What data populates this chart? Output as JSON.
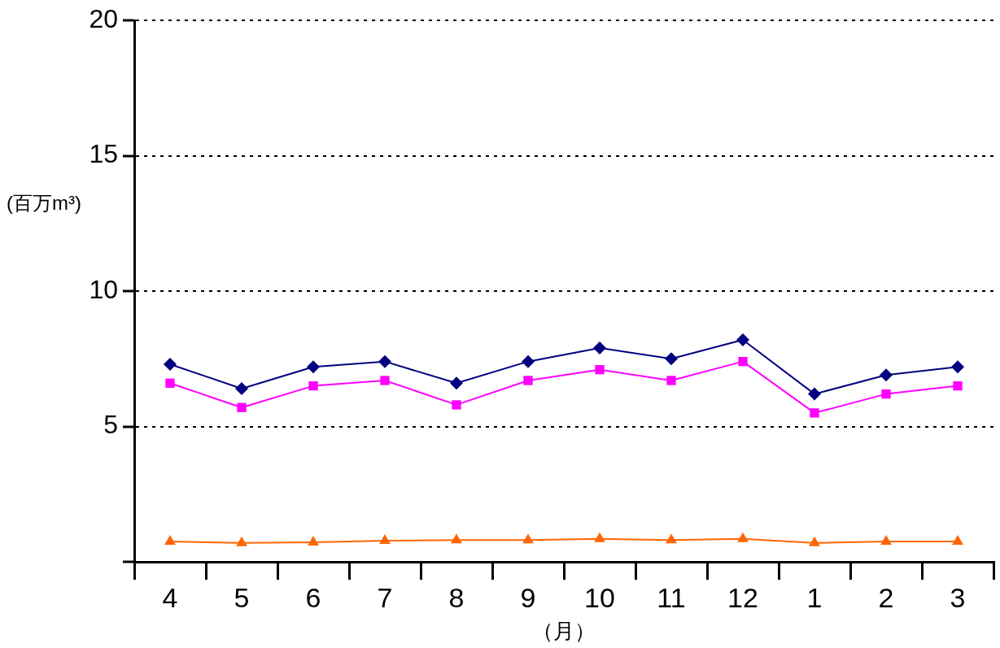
{
  "chart_data": {
    "type": "line",
    "xlabel": "（月）",
    "ylabel": "(百万m³)",
    "categories": [
      "4",
      "5",
      "6",
      "7",
      "8",
      "9",
      "10",
      "11",
      "12",
      "1",
      "2",
      "3"
    ],
    "series": [
      {
        "color": "#000080",
        "marker": "diamond",
        "values": [
          7.3,
          6.4,
          7.2,
          7.4,
          6.6,
          7.4,
          7.9,
          7.5,
          8.2,
          6.2,
          6.9,
          7.2
        ]
      },
      {
        "color": "#ff00ff",
        "marker": "square",
        "values": [
          6.6,
          5.7,
          6.5,
          6.7,
          5.8,
          6.7,
          7.1,
          6.7,
          7.4,
          5.5,
          6.2,
          6.5
        ]
      },
      {
        "color": "#ff6600",
        "marker": "triangle",
        "values": [
          0.75,
          0.7,
          0.72,
          0.78,
          0.8,
          0.8,
          0.85,
          0.8,
          0.85,
          0.7,
          0.75,
          0.75
        ]
      }
    ],
    "ylim": [
      0,
      20
    ],
    "yticks": [
      {
        "value": 0,
        "label": null
      },
      5,
      10,
      15,
      20
    ],
    "grid": "y",
    "legend": false,
    "line_style": "solid"
  }
}
